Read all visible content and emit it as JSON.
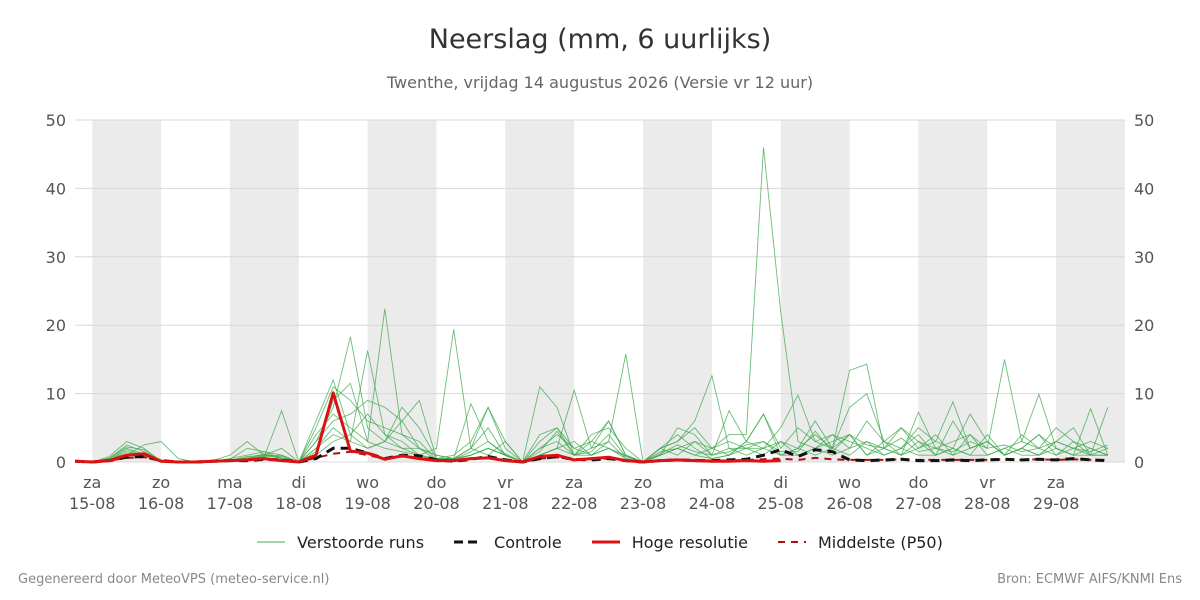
{
  "header": {
    "title": "Neerslag (mm, 6 uurlijks)",
    "subtitle": "Twenthe, vrijdag 14 augustus 2026 (Versie vr 12 uur)"
  },
  "legend": {
    "items": [
      {
        "label": "Verstoorde runs",
        "color": "#4caf50",
        "style": "thin"
      },
      {
        "label": "Controle",
        "color": "#111111",
        "style": "dashed"
      },
      {
        "label": "Hoge resolutie",
        "color": "#dd1111",
        "style": "solid"
      },
      {
        "label": "Middelste (P50)",
        "color": "#aa1111",
        "style": "dashed"
      }
    ]
  },
  "footer": {
    "left": "Gegenereerd door MeteoVPS (meteo-service.nl)",
    "right": "Bron: ECMWF AIFS/KNMI Ens"
  },
  "chart_data": {
    "type": "line",
    "title": "Neerslag (mm, 6 uurlijks)",
    "subtitle": "Twenthe, vrijdag 14 augustus 2026 (Versie vr 12 uur)",
    "unit": "mm",
    "ylim": [
      0,
      50
    ],
    "yticks": [
      0,
      10,
      20,
      30,
      40,
      50
    ],
    "xlim": [
      -0.25,
      15.0
    ],
    "grid": true,
    "weekend_shading": true,
    "legend_position": "bottom",
    "x_ticks": [
      {
        "day": "za",
        "date": "15-08"
      },
      {
        "day": "zo",
        "date": "16-08"
      },
      {
        "day": "ma",
        "date": "17-08"
      },
      {
        "day": "di",
        "date": "18-08"
      },
      {
        "day": "wo",
        "date": "19-08"
      },
      {
        "day": "do",
        "date": "20-08"
      },
      {
        "day": "vr",
        "date": "21-08"
      },
      {
        "day": "za",
        "date": "22-08"
      },
      {
        "day": "zo",
        "date": "23-08"
      },
      {
        "day": "ma",
        "date": "24-08"
      },
      {
        "day": "di",
        "date": "25-08"
      },
      {
        "day": "wo",
        "date": "26-08"
      },
      {
        "day": "do",
        "date": "27-08"
      },
      {
        "day": "vr",
        "date": "28-08"
      },
      {
        "day": "za",
        "date": "29-08"
      }
    ],
    "shaded_bands": [
      [
        0,
        1
      ],
      [
        2,
        3
      ],
      [
        4,
        5
      ],
      [
        6,
        7
      ],
      [
        8,
        9
      ],
      [
        10,
        11
      ],
      [
        12,
        13
      ],
      [
        14,
        15
      ]
    ],
    "x_step_days": 0.25,
    "x_start": -0.25,
    "series": [
      {
        "name": "Hoge resolutie",
        "color": "#dd1111",
        "values": [
          0.1,
          0,
          0.2,
          1.0,
          1.2,
          0.1,
          0,
          0,
          0.1,
          0.2,
          0.3,
          0.5,
          0.2,
          0,
          1.0,
          10.1,
          1.6,
          1.3,
          0.4,
          0.9,
          0.5,
          0.2,
          0.2,
          0.5,
          0.6,
          0.2,
          0,
          0.8,
          1.0,
          0.3,
          0.5,
          0.7,
          0.2,
          0,
          0.2,
          0.3,
          0.2,
          0.1,
          0.1,
          0.2,
          0.1,
          0.2
        ]
      },
      {
        "name": "Controle",
        "color": "#111111",
        "values": [
          0.1,
          0,
          0.2,
          0.7,
          0.8,
          0.2,
          0,
          0,
          0.1,
          0.2,
          0.2,
          0.4,
          0.3,
          0,
          0.5,
          2.0,
          2.0,
          1.3,
          0.5,
          1.0,
          0.9,
          0.3,
          0.1,
          0.4,
          0.8,
          0.3,
          0,
          0.5,
          0.8,
          0.4,
          0.3,
          0.5,
          0.2,
          0,
          0.2,
          0.3,
          0.2,
          0.2,
          0.3,
          0.4,
          1.0,
          1.8,
          0.8,
          1.8,
          1.5,
          0.3,
          0.2,
          0.3,
          0.4,
          0.2,
          0.2,
          0.3,
          0.2,
          0.3,
          0.4,
          0.3,
          0.4,
          0.3,
          0.5,
          0.3,
          0.2
        ]
      },
      {
        "name": "Middelste (P50)",
        "color": "#aa1111",
        "values": [
          0.1,
          0,
          0.2,
          0.6,
          0.7,
          0.2,
          0,
          0,
          0.1,
          0.2,
          0.3,
          0.4,
          0.3,
          0,
          0.6,
          1.2,
          1.5,
          1.0,
          0.5,
          0.8,
          0.6,
          0.3,
          0.2,
          0.4,
          0.7,
          0.3,
          0,
          0.5,
          0.7,
          0.3,
          0.4,
          0.5,
          0.3,
          0,
          0.2,
          0.3,
          0.3,
          0.2,
          0.2,
          0.3,
          0.4,
          0.5,
          0.3,
          0.6,
          0.4,
          0.3,
          0.3,
          0.3,
          0.4,
          0.3,
          0.3,
          0.3,
          0.3,
          0.3,
          0.4,
          0.3,
          0.4,
          0.3,
          0.4,
          0.3,
          0.3
        ]
      }
    ],
    "ensemble": {
      "name": "Verstoorde runs",
      "color": "#3aa84a",
      "members": [
        [
          0.1,
          0,
          0.8,
          3.0,
          2.0,
          0.1,
          0,
          0,
          0.1,
          0.5,
          1.0,
          1.5,
          0.5,
          0,
          6.0,
          12.0,
          4.0,
          7.0,
          4.0,
          2.0,
          1.0,
          0.5,
          1.0,
          3.0,
          8.0,
          2.0,
          0,
          3.0,
          5.0,
          1.0,
          2.0,
          6.0,
          1.0,
          0,
          2.0,
          4.0,
          2.0,
          0.5,
          1.0,
          3.0,
          7.0,
          2.0,
          5.0,
          3.0,
          4.0,
          2.0,
          6.0,
          3.0,
          1.0,
          2.0,
          4.0,
          1.0,
          2.0,
          3.0,
          1.0,
          2.0,
          4.0,
          1.0,
          3.0,
          2.0,
          1.0
        ],
        [
          0.1,
          0,
          0.5,
          2.5,
          1.5,
          0.2,
          0,
          0,
          0.2,
          1.0,
          3.0,
          1.0,
          2.0,
          0,
          3.0,
          8.0,
          18.3,
          5.0,
          3.0,
          6.0,
          2.0,
          1.0,
          0.5,
          2.0,
          5.0,
          1.0,
          0,
          2.0,
          4.0,
          2.0,
          1.0,
          3.0,
          0.5,
          0,
          1.0,
          5.0,
          4.0,
          1.0,
          2.0,
          2.0,
          3.0,
          1.0,
          2.0,
          1.0,
          2.0,
          1.0,
          3.0,
          2.0,
          5.0,
          3.0,
          1.0,
          2.0,
          1.0,
          4.0,
          1.0,
          2.0,
          1.0,
          3.0,
          2.0,
          1.0,
          1.0
        ],
        [
          0.1,
          0,
          0.3,
          1.5,
          1.0,
          0.1,
          0,
          0,
          0.1,
          0.3,
          0.5,
          0.8,
          1.0,
          0,
          2.0,
          5.0,
          3.0,
          16.3,
          4.0,
          3.0,
          1.0,
          2.0,
          19.4,
          2.0,
          1.0,
          3.0,
          0,
          1.0,
          2.0,
          3.0,
          1.0,
          2.0,
          1.0,
          0,
          1.5,
          2.0,
          1.0,
          2.0,
          3.0,
          2.0,
          1.0,
          3.0,
          2.0,
          4.0,
          2.0,
          13.4,
          14.3,
          2.0,
          1.0,
          3.0,
          2.0,
          1.0,
          4.0,
          2.0,
          15.0,
          3.0,
          2.0,
          1.0,
          2.0,
          3.0,
          2.0
        ],
        [
          0.1,
          0,
          0.5,
          2.0,
          1.2,
          0.3,
          0,
          0,
          0.1,
          0.2,
          0.8,
          1.0,
          0.5,
          0,
          4.0,
          7.0,
          5.0,
          3.0,
          22.4,
          4.0,
          2.0,
          1.0,
          0.5,
          1.0,
          2.0,
          1.0,
          0,
          2.0,
          3.0,
          1.0,
          4.0,
          5.0,
          2.0,
          0,
          2.0,
          3.0,
          6.0,
          12.6,
          2.0,
          1.0,
          2.0,
          3.0,
          1.0,
          2.0,
          3.0,
          4.0,
          1.0,
          3.0,
          2.0,
          4.0,
          1.0,
          6.0,
          2.0,
          3.0,
          1.0,
          2.0,
          1.0,
          3.0,
          5.0,
          1.0,
          2.0
        ],
        [
          0.1,
          0,
          0.4,
          1.0,
          2.5,
          3.0,
          0.5,
          0,
          0.1,
          0.1,
          0.5,
          0.8,
          7.5,
          0,
          1.0,
          3.0,
          4.0,
          2.0,
          3.0,
          8.0,
          5.0,
          0.5,
          0.5,
          8.5,
          3.0,
          1.0,
          0,
          11.0,
          8.0,
          1.0,
          3.0,
          2.0,
          0.8,
          0,
          2.0,
          1.0,
          3.0,
          2.0,
          4.0,
          4.0,
          46.0,
          22.0,
          3.0,
          2.0,
          4.0,
          3.0,
          2.0,
          1.0,
          2.0,
          5.0,
          3.0,
          8.8,
          2.0,
          3.0,
          1.0,
          2.0,
          4.0,
          2.0,
          1.0,
          2.0,
          1.0
        ],
        [
          0.1,
          0,
          0.3,
          1.8,
          1.0,
          0.1,
          0,
          0,
          0.2,
          0.4,
          2.0,
          1.5,
          1.0,
          0,
          5.0,
          11.0,
          9.0,
          6.0,
          5.0,
          4.0,
          3.0,
          0.3,
          0.5,
          1.0,
          2.0,
          1.0,
          0,
          1.0,
          2.0,
          10.5,
          2.0,
          3.0,
          15.8,
          0,
          1.0,
          2.0,
          3.0,
          1.0,
          7.5,
          3.0,
          2.0,
          5.0,
          9.8,
          3.0,
          2.0,
          4.0,
          1.0,
          2.0,
          1.0,
          7.3,
          2.0,
          3.0,
          4.0,
          1.0,
          2.0,
          3.0,
          9.9,
          2.0,
          1.0,
          7.8,
          1.0
        ],
        [
          0.1,
          0,
          0.6,
          2.2,
          1.8,
          0.2,
          0,
          0,
          0.1,
          0.2,
          0.5,
          1.0,
          0.8,
          0,
          3.0,
          6.0,
          7.0,
          9.0,
          8.0,
          6.0,
          9.0,
          0.5,
          0.5,
          2.0,
          8.0,
          3.0,
          0,
          4.0,
          5.0,
          2.0,
          3.0,
          6.0,
          1.0,
          0,
          2.0,
          3.0,
          5.0,
          2.0,
          1.0,
          3.0,
          7.0,
          1.0,
          2.0,
          6.0,
          2.0,
          8.0,
          10.0,
          3.0,
          5.0,
          2.0,
          3.0,
          2.0,
          7.0,
          3.0,
          1.0,
          4.0,
          2.0,
          5.0,
          3.0,
          1.0,
          8.0
        ],
        [
          0.1,
          0,
          0.2,
          1.0,
          0.8,
          0.1,
          0,
          0,
          0.1,
          0.2,
          0.3,
          0.5,
          0.3,
          0,
          2.0,
          4.0,
          3.0,
          2.0,
          3.0,
          2.0,
          2.0,
          0.3,
          0.3,
          1.0,
          2.0,
          1.0,
          0,
          1.0,
          2.0,
          1.0,
          1.0,
          2.0,
          0.5,
          0,
          1.0,
          2.0,
          1.0,
          0.5,
          1.0,
          2.0,
          2.0,
          1.0,
          1.0,
          2.0,
          1.0,
          2.0,
          3.0,
          1.0,
          2.0,
          1.0,
          1.0,
          2.0,
          1.0,
          1.0,
          2.0,
          1.0,
          1.0,
          2.0,
          1.0,
          1.0,
          1.0
        ],
        [
          0.1,
          0,
          0.4,
          1.2,
          0.9,
          0.1,
          0,
          0,
          0.1,
          0.3,
          0.6,
          1.2,
          0.6,
          0,
          1.5,
          9.0,
          11.5,
          3.0,
          2.0,
          1.5,
          1.0,
          0.3,
          0.4,
          1.5,
          3.0,
          1.2,
          0,
          1.5,
          4.5,
          1.0,
          1.5,
          4.0,
          0.8,
          0,
          1.2,
          2.5,
          1.5,
          1.0,
          1.5,
          2.5,
          3.0,
          1.5,
          1.5,
          4.5,
          1.5,
          4.0,
          2.5,
          2.0,
          3.5,
          1.5,
          2.0,
          1.5,
          3.0,
          2.0,
          2.5,
          1.5,
          2.0,
          3.0,
          2.0,
          1.5,
          2.5
        ]
      ]
    }
  }
}
